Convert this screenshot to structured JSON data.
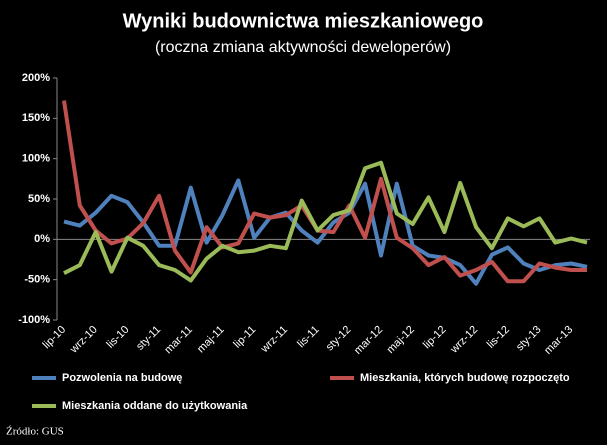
{
  "chart_data": {
    "type": "line",
    "title": "Wyniki budownictwa mieszkaniowego",
    "subtitle": "(roczna zmiana aktywności deweloperów)",
    "source": "Źródło: GUS",
    "categories": [
      "lip-10",
      null,
      "wrz-10",
      null,
      "lis-10",
      null,
      "sty-11",
      null,
      "mar-11",
      null,
      "maj-11",
      null,
      "lip-11",
      null,
      "wrz-11",
      null,
      "lis-11",
      null,
      "sty-12",
      null,
      "mar-12",
      null,
      "maj-12",
      null,
      "lip-12",
      null,
      "wrz-12",
      null,
      "lis-12",
      null,
      "sty-13",
      null,
      "mar-13",
      null
    ],
    "series": [
      {
        "name": "Pozwolenia na budowę",
        "color": "#4f81bd",
        "values": [
          22,
          17,
          33,
          54,
          46,
          21,
          -8,
          -8,
          64,
          -4,
          30,
          73,
          2,
          27,
          33,
          11,
          -4,
          21,
          33,
          69,
          -20,
          69,
          -8,
          -20,
          -23,
          -32,
          -55,
          -19,
          -10,
          -30,
          -38,
          -32,
          -30,
          -34
        ]
      },
      {
        "name": "Mieszkania, których budowę rozpoczęto",
        "color": "#c0504d",
        "values": [
          172,
          42,
          11,
          -5,
          1,
          20,
          54,
          -14,
          -41,
          15,
          -10,
          -5,
          32,
          27,
          30,
          42,
          11,
          9,
          42,
          2,
          75,
          2,
          -11,
          -32,
          -22,
          -45,
          -38,
          -28,
          -52,
          -52,
          -30,
          -35,
          -38,
          -38
        ]
      },
      {
        "name": "Mieszkania oddane do użytkowania",
        "color": "#9bbb59",
        "values": [
          -42,
          -32,
          9,
          -40,
          2,
          -8,
          -32,
          -38,
          -51,
          -24,
          -8,
          -16,
          -14,
          -8,
          -11,
          48,
          11,
          30,
          36,
          88,
          95,
          32,
          19,
          52,
          9,
          70,
          15,
          -11,
          26,
          16,
          26,
          -4,
          1,
          -4
        ]
      }
    ],
    "ylim": [
      -100,
      200
    ],
    "yticks": [
      {
        "value": -100,
        "label": "-100%"
      },
      {
        "value": -50,
        "label": "-50%"
      },
      {
        "value": 0,
        "label": "0%"
      },
      {
        "value": 50,
        "label": "50%"
      },
      {
        "value": 100,
        "label": "100%"
      },
      {
        "value": 150,
        "label": "150%"
      },
      {
        "value": 200,
        "label": "200%"
      }
    ],
    "grid": false
  }
}
